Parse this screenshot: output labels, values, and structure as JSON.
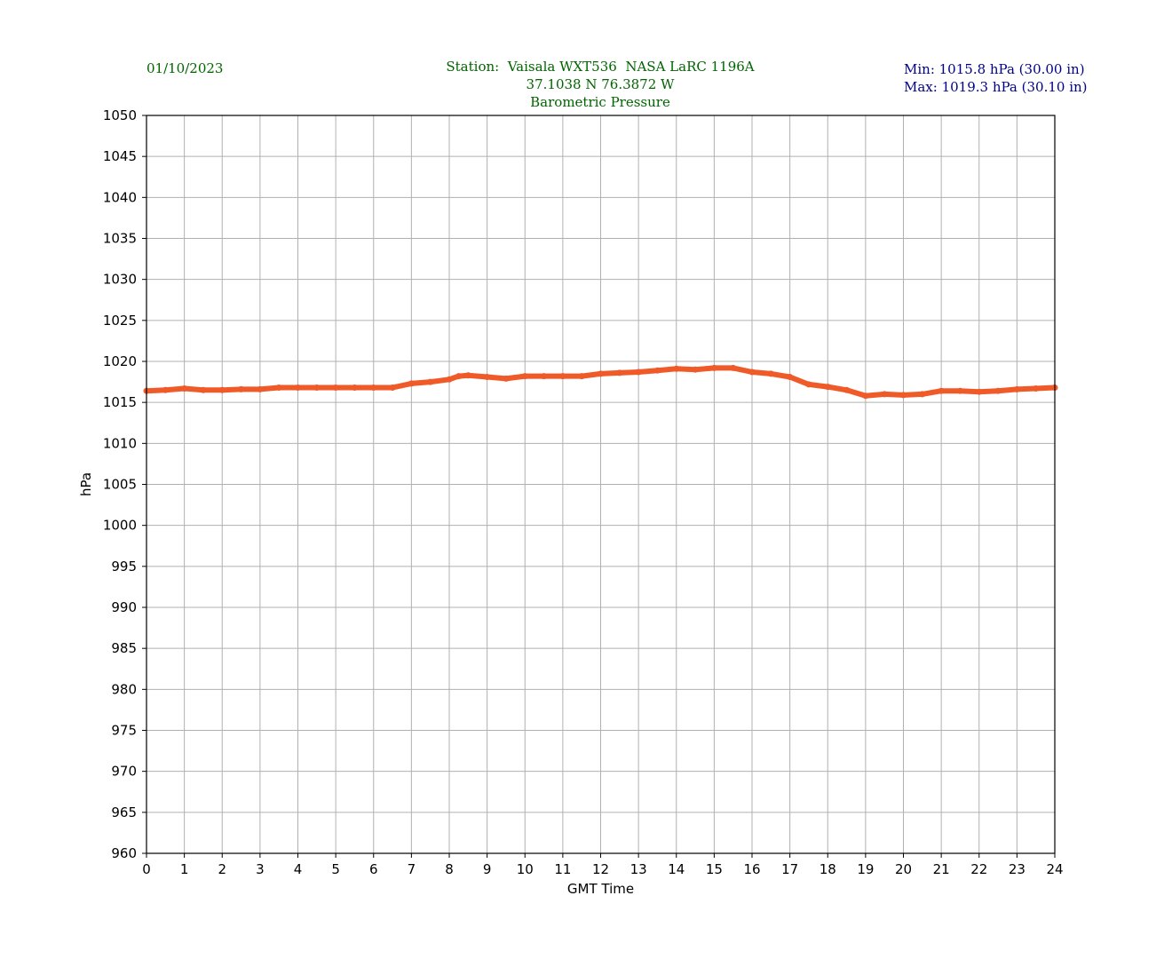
{
  "header": {
    "date": "01/10/2023",
    "station_line": "Station:  Vaisala WXT536  NASA LaRC 1196A",
    "coords_line": "37.1038 N 76.3872 W",
    "title_line": "Barometric Pressure",
    "min_line": "Min: 1015.8 hPa (30.00 in)",
    "max_line": "Max: 1019.3 hPa (30.10 in)"
  },
  "colors": {
    "header_text": "#006400",
    "minmax_text": "#00008b",
    "series": "#f05a28",
    "grid": "#b0b0b0"
  },
  "chart_data": {
    "type": "line",
    "title": "Barometric Pressure",
    "xlabel": "GMT Time",
    "ylabel": "hPa",
    "xlim": [
      0,
      24
    ],
    "ylim": [
      960,
      1050
    ],
    "xticks": [
      0,
      1,
      2,
      3,
      4,
      5,
      6,
      7,
      8,
      9,
      10,
      11,
      12,
      13,
      14,
      15,
      16,
      17,
      18,
      19,
      20,
      21,
      22,
      23,
      24
    ],
    "yticks": [
      960,
      965,
      970,
      975,
      980,
      985,
      990,
      995,
      1000,
      1005,
      1010,
      1015,
      1020,
      1025,
      1030,
      1035,
      1040,
      1045,
      1050
    ],
    "grid": true,
    "series": [
      {
        "x": [
          0,
          0.5,
          1,
          1.5,
          2,
          2.5,
          3,
          3.5,
          4,
          4.5,
          5,
          5.5,
          6,
          6.5,
          7,
          7.5,
          8,
          8.25,
          8.5,
          9,
          9.5,
          10,
          10.5,
          11,
          11.5,
          12,
          12.5,
          13,
          13.5,
          14,
          14.5,
          15,
          15.5,
          16,
          16.5,
          17,
          17.5,
          18,
          18.5,
          19,
          19.5,
          20,
          20.5,
          21,
          21.5,
          22,
          22.5,
          23,
          23.5,
          24
        ],
        "y": [
          1016.4,
          1016.5,
          1016.7,
          1016.5,
          1016.5,
          1016.6,
          1016.6,
          1016.8,
          1016.8,
          1016.8,
          1016.8,
          1016.8,
          1016.8,
          1016.8,
          1017.3,
          1017.5,
          1017.8,
          1018.2,
          1018.3,
          1018.1,
          1017.9,
          1018.2,
          1018.2,
          1018.2,
          1018.2,
          1018.5,
          1018.6,
          1018.7,
          1018.9,
          1019.1,
          1019.0,
          1019.2,
          1019.2,
          1018.7,
          1018.5,
          1018.1,
          1017.2,
          1016.9,
          1016.5,
          1015.8,
          1016.0,
          1015.9,
          1016.0,
          1016.4,
          1016.4,
          1016.3,
          1016.4,
          1016.6,
          1016.7,
          1016.8
        ]
      }
    ]
  }
}
